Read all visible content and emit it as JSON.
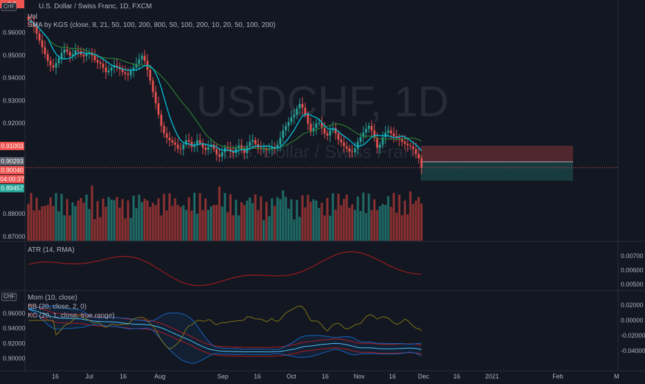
{
  "chart_header": {
    "symbol_badge": "CHF",
    "title": "U.S. Dollar / Swiss Franc, 1D, FXCM",
    "vol_label": "Vol",
    "sma_label": "SMA by KGS (close, 8, 21, 50, 100, 200, 800, 50, 100, 200, 10, 20, 50, 100, 200)",
    "watermark": "USDCHF, 1D",
    "watermark_sub": "U.S. Dollar / Swiss Franc"
  },
  "price_axis": {
    "ticks": [
      "0.96000",
      "0.95000",
      "0.94000",
      "0.93000",
      "0.92000",
      "0.88000",
      "0.87000"
    ],
    "labels": {
      "top_clipped": "0.9",
      "red_level": "0.91003",
      "gray_level": "0.90293",
      "current_price": "0.90040",
      "countdown": "04:00:37",
      "teal_level": "0.89457"
    }
  },
  "atr_pane": {
    "label": "ATR (14, RMA)",
    "ticks": [
      "0.00700",
      "0.00600",
      "0.00500"
    ]
  },
  "bottom_pane": {
    "symbol_badge": "CHF",
    "mom_label": "Mom (10, close)",
    "bb_label": "BB (20, close, 2, 0)",
    "kc_label": "KC (20, 1, close, true range)",
    "left_ticks": [
      "0.96000",
      "0.94000",
      "0.92000",
      "0.90000"
    ],
    "right_ticks": [
      "0.02000",
      "0.00000",
      "-0.02000",
      "-0.04000"
    ]
  },
  "time_axis": {
    "labels": [
      "16",
      "Jul",
      "16",
      "Aug",
      "Sep",
      "16",
      "Oct",
      "16",
      "Nov",
      "16",
      "Dec",
      "16",
      "2021",
      "Feb",
      "M"
    ]
  },
  "colors": {
    "background": "#131722",
    "bull": "#26a69a",
    "bear": "#ef5350",
    "vol_bull": "#1f6b66",
    "vol_bear": "#8b3131",
    "sma_fast": "#00bcd4",
    "sma_slow": "#2e7d32",
    "atr": "#b71c1c",
    "mom": "#827717",
    "bb": "#1565c0",
    "kc": "#b71c1c"
  },
  "chart_data": {
    "type": "candlestick",
    "symbol": "USDCHF",
    "timeframe": "1D",
    "close": [
      0.9655,
      0.9645,
      0.9625,
      0.9595,
      0.9565,
      0.9535,
      0.9505,
      0.9475,
      0.9455,
      0.9445,
      0.9465,
      0.9485,
      0.951,
      0.9525,
      0.9515,
      0.9498,
      0.9505,
      0.9522,
      0.9518,
      0.9502,
      0.9495,
      0.9505,
      0.9512,
      0.9498,
      0.9478,
      0.9468,
      0.9462,
      0.9445,
      0.9425,
      0.9432,
      0.9445,
      0.9455,
      0.9448,
      0.9438,
      0.9425,
      0.9418,
      0.9412,
      0.9432,
      0.9445,
      0.9462,
      0.9482,
      0.9498,
      0.9475,
      0.9435,
      0.9388,
      0.9338,
      0.9288,
      0.9238,
      0.9188,
      0.9155,
      0.9135,
      0.9125,
      0.9115,
      0.9105,
      0.9088,
      0.9085,
      0.9105,
      0.9125,
      0.9118,
      0.9095,
      0.9102,
      0.9125,
      0.9112,
      0.9092,
      0.9082,
      0.9095,
      0.9105,
      0.9085,
      0.9062,
      0.9052,
      0.9072,
      0.9092,
      0.9088,
      0.9075,
      0.9068,
      0.9088,
      0.9102,
      0.9082,
      0.9068,
      0.9098,
      0.9118,
      0.9125,
      0.9108,
      0.9092,
      0.9085,
      0.9088,
      0.9082,
      0.9085,
      0.9095,
      0.9092,
      0.9105,
      0.9135,
      0.9168,
      0.9188,
      0.9205,
      0.9225,
      0.9238,
      0.9265,
      0.9285,
      0.9268,
      0.9238,
      0.9198,
      0.9165,
      0.9178,
      0.9198,
      0.9202,
      0.9178,
      0.9155,
      0.9145,
      0.9168,
      0.9178,
      0.9155,
      0.9128,
      0.9115,
      0.9098,
      0.9088,
      0.9075,
      0.9072,
      0.9088,
      0.9118,
      0.9138,
      0.9158,
      0.9175,
      0.9188,
      0.9168,
      0.9135,
      0.9092,
      0.9105,
      0.9138,
      0.9158,
      0.9168,
      0.9155,
      0.9142,
      0.9135,
      0.9128,
      0.9118,
      0.9108,
      0.9102,
      0.9098,
      0.9085,
      0.9065,
      0.9045,
      0.9004
    ],
    "volume_scale": "relative",
    "atr_range": [
      0.0049,
      0.0072
    ],
    "mom_range": [
      -0.038,
      0.02
    ],
    "pending_position": {
      "entry": 0.90293,
      "stop": 0.91003,
      "target": 0.89457
    }
  }
}
